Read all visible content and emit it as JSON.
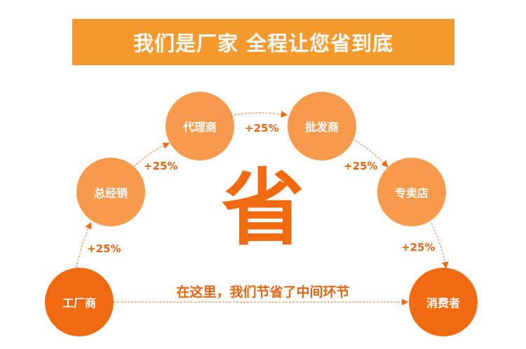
{
  "banner": {
    "title": "我们是厂家 全程让您省到底"
  },
  "colors": {
    "banner": "#f79a2e",
    "end_node": "#f26a10",
    "mid_node": "#f89a4c",
    "text_accent": "#e8650f"
  },
  "nodes": [
    {
      "label": "工厂商",
      "kind": "end"
    },
    {
      "label": "总经销",
      "kind": "mid"
    },
    {
      "label": "代理商",
      "kind": "mid"
    },
    {
      "label": "批发商",
      "kind": "mid"
    },
    {
      "label": "专卖店",
      "kind": "mid"
    },
    {
      "label": "消费者",
      "kind": "end"
    }
  ],
  "markups": [
    "+25%",
    "+25%",
    "+25%",
    "+25%",
    "+25%"
  ],
  "center": {
    "big_char": "省",
    "caption": "在这里，我们节省了中间环节"
  }
}
